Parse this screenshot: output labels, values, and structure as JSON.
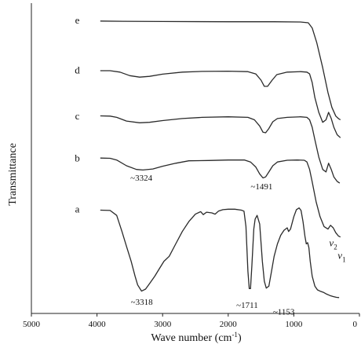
{
  "chart_data": {
    "type": "line",
    "title": "",
    "xlabel": "Wave number (cm",
    "xlabel_sup": "-1",
    "xlabel_close": ")",
    "ylabel": "Transmittance",
    "xlim": [
      5000,
      0
    ],
    "x_reversed": true,
    "y_units": "relative transmittance, offset per curve",
    "x_ticks": [
      {
        "value": 5000,
        "label": "5000"
      },
      {
        "value": 4000,
        "label": "4000"
      },
      {
        "value": 3000,
        "label": "3000"
      },
      {
        "value": 2000,
        "label": "2000"
      },
      {
        "value": 1000,
        "label": "1000"
      },
      {
        "value": 0,
        "label": "0"
      }
    ],
    "grid": false,
    "legend": "none",
    "series": [
      {
        "name": "e",
        "baseline": 0.93,
        "points": [
          [
            3950,
            0.928
          ],
          [
            3600,
            0.927
          ],
          [
            3000,
            0.926
          ],
          [
            2000,
            0.925
          ],
          [
            1300,
            0.925
          ],
          [
            900,
            0.924
          ],
          [
            780,
            0.921
          ],
          [
            720,
            0.9
          ],
          [
            650,
            0.84
          ],
          [
            560,
            0.74
          ],
          [
            480,
            0.64
          ],
          [
            420,
            0.58
          ],
          [
            360,
            0.545
          ],
          [
            320,
            0.535
          ],
          [
            290,
            0.53
          ]
        ]
      },
      {
        "name": "d",
        "baseline": 0.73,
        "points": [
          [
            3950,
            0.728
          ],
          [
            3800,
            0.728
          ],
          [
            3650,
            0.722
          ],
          [
            3500,
            0.708
          ],
          [
            3350,
            0.702
          ],
          [
            3200,
            0.705
          ],
          [
            3000,
            0.714
          ],
          [
            2700,
            0.722
          ],
          [
            2400,
            0.725
          ],
          [
            2000,
            0.726
          ],
          [
            1700,
            0.724
          ],
          [
            1580,
            0.715
          ],
          [
            1500,
            0.69
          ],
          [
            1450,
            0.665
          ],
          [
            1400,
            0.665
          ],
          [
            1330,
            0.69
          ],
          [
            1260,
            0.712
          ],
          [
            1100,
            0.722
          ],
          [
            900,
            0.724
          ],
          [
            800,
            0.722
          ],
          [
            760,
            0.715
          ],
          [
            720,
            0.68
          ],
          [
            680,
            0.62
          ],
          [
            620,
            0.56
          ],
          [
            560,
            0.52
          ],
          [
            510,
            0.53
          ],
          [
            470,
            0.56
          ],
          [
            430,
            0.535
          ],
          [
            390,
            0.5
          ],
          [
            340,
            0.47
          ],
          [
            290,
            0.458
          ]
        ]
      },
      {
        "name": "c",
        "baseline": 0.545,
        "points": [
          [
            3950,
            0.546
          ],
          [
            3800,
            0.545
          ],
          [
            3700,
            0.54
          ],
          [
            3550,
            0.525
          ],
          [
            3350,
            0.518
          ],
          [
            3200,
            0.52
          ],
          [
            3000,
            0.527
          ],
          [
            2700,
            0.535
          ],
          [
            2400,
            0.54
          ],
          [
            2000,
            0.542
          ],
          [
            1700,
            0.54
          ],
          [
            1600,
            0.53
          ],
          [
            1520,
            0.505
          ],
          [
            1470,
            0.48
          ],
          [
            1430,
            0.478
          ],
          [
            1380,
            0.495
          ],
          [
            1320,
            0.522
          ],
          [
            1250,
            0.535
          ],
          [
            1100,
            0.54
          ],
          [
            900,
            0.542
          ],
          [
            800,
            0.54
          ],
          [
            760,
            0.53
          ],
          [
            720,
            0.5
          ],
          [
            680,
            0.45
          ],
          [
            620,
            0.38
          ],
          [
            560,
            0.33
          ],
          [
            510,
            0.32
          ],
          [
            470,
            0.355
          ],
          [
            430,
            0.33
          ],
          [
            390,
            0.3
          ],
          [
            340,
            0.282
          ],
          [
            300,
            0.275
          ]
        ]
      },
      {
        "name": "b",
        "baseline": 0.375,
        "points": [
          [
            3950,
            0.376
          ],
          [
            3800,
            0.375
          ],
          [
            3700,
            0.368
          ],
          [
            3550,
            0.345
          ],
          [
            3400,
            0.33
          ],
          [
            3300,
            0.328
          ],
          [
            3150,
            0.332
          ],
          [
            3000,
            0.343
          ],
          [
            2800,
            0.355
          ],
          [
            2600,
            0.365
          ],
          [
            2300,
            0.366
          ],
          [
            2000,
            0.368
          ],
          [
            1750,
            0.368
          ],
          [
            1660,
            0.36
          ],
          [
            1580,
            0.34
          ],
          [
            1520,
            0.312
          ],
          [
            1470,
            0.296
          ],
          [
            1430,
            0.3
          ],
          [
            1380,
            0.32
          ],
          [
            1320,
            0.345
          ],
          [
            1250,
            0.36
          ],
          [
            1100,
            0.367
          ],
          [
            950,
            0.368
          ],
          [
            840,
            0.367
          ],
          [
            800,
            0.36
          ],
          [
            760,
            0.33
          ],
          [
            720,
            0.28
          ],
          [
            660,
            0.2
          ],
          [
            600,
            0.14
          ],
          [
            540,
            0.1
          ],
          [
            480,
            0.09
          ],
          [
            440,
            0.105
          ],
          [
            400,
            0.095
          ],
          [
            360,
            0.075
          ],
          [
            320,
            0.062
          ],
          [
            290,
            0.058
          ]
        ]
      },
      {
        "name": "a",
        "baseline": 0.17,
        "points": [
          [
            3950,
            0.166
          ],
          [
            3800,
            0.165
          ],
          [
            3700,
            0.145
          ],
          [
            3620,
            0.08
          ],
          [
            3550,
            0.02
          ],
          [
            3480,
            -0.04
          ],
          [
            3420,
            -0.1
          ],
          [
            3380,
            -0.135
          ],
          [
            3320,
            -0.16
          ],
          [
            3260,
            -0.152
          ],
          [
            3200,
            -0.13
          ],
          [
            3120,
            -0.1
          ],
          [
            3050,
            -0.07
          ],
          [
            2980,
            -0.04
          ],
          [
            2900,
            -0.02
          ],
          [
            2800,
            0.03
          ],
          [
            2700,
            0.08
          ],
          [
            2600,
            0.12
          ],
          [
            2500,
            0.15
          ],
          [
            2420,
            0.16
          ],
          [
            2380,
            0.148
          ],
          [
            2330,
            0.158
          ],
          [
            2250,
            0.155
          ],
          [
            2200,
            0.15
          ],
          [
            2150,
            0.162
          ],
          [
            2080,
            0.168
          ],
          [
            2000,
            0.17
          ],
          [
            1900,
            0.17
          ],
          [
            1800,
            0.166
          ],
          [
            1760,
            0.162
          ],
          [
            1730,
            0.1
          ],
          [
            1700,
            -0.08
          ],
          [
            1680,
            -0.15
          ],
          [
            1660,
            -0.15
          ],
          [
            1640,
            -0.06
          ],
          [
            1610,
            0.09
          ],
          [
            1590,
            0.13
          ],
          [
            1560,
            0.145
          ],
          [
            1520,
            0.11
          ],
          [
            1480,
            -0.04
          ],
          [
            1450,
            -0.12
          ],
          [
            1420,
            -0.148
          ],
          [
            1380,
            -0.14
          ],
          [
            1340,
            -0.08
          ],
          [
            1300,
            -0.02
          ],
          [
            1250,
            0.03
          ],
          [
            1200,
            0.065
          ],
          [
            1150,
            0.085
          ],
          [
            1100,
            0.095
          ],
          [
            1080,
            0.08
          ],
          [
            1050,
            0.09
          ],
          [
            1000,
            0.14
          ],
          [
            960,
            0.168
          ],
          [
            920,
            0.175
          ],
          [
            890,
            0.165
          ],
          [
            860,
            0.12
          ],
          [
            830,
            0.06
          ],
          [
            810,
            0.03
          ],
          [
            790,
            0.035
          ],
          [
            770,
            0.015
          ],
          [
            750,
            -0.04
          ],
          [
            720,
            -0.1
          ],
          [
            680,
            -0.14
          ],
          [
            640,
            -0.155
          ],
          [
            600,
            -0.16
          ],
          [
            550,
            -0.165
          ],
          [
            500,
            -0.172
          ],
          [
            450,
            -0.178
          ],
          [
            400,
            -0.182
          ],
          [
            350,
            -0.185
          ],
          [
            310,
            -0.186
          ]
        ]
      }
    ],
    "annotations": [
      {
        "text": "~3324",
        "x": 3324,
        "y": 0.285
      },
      {
        "text": "~1491",
        "x": 1491,
        "y": 0.25
      },
      {
        "text": "~3318",
        "x": 3318,
        "y": -0.215
      },
      {
        "text": "~1711",
        "x": 1711,
        "y": -0.228
      },
      {
        "text": "~1153",
        "x": 1153,
        "y": -0.255
      }
    ],
    "subscript_labels": [
      {
        "base": "v",
        "sub": "2",
        "x": 400,
        "y": 0.02
      },
      {
        "base": "v",
        "sub": "1",
        "x": 270,
        "y": -0.03
      }
    ]
  }
}
